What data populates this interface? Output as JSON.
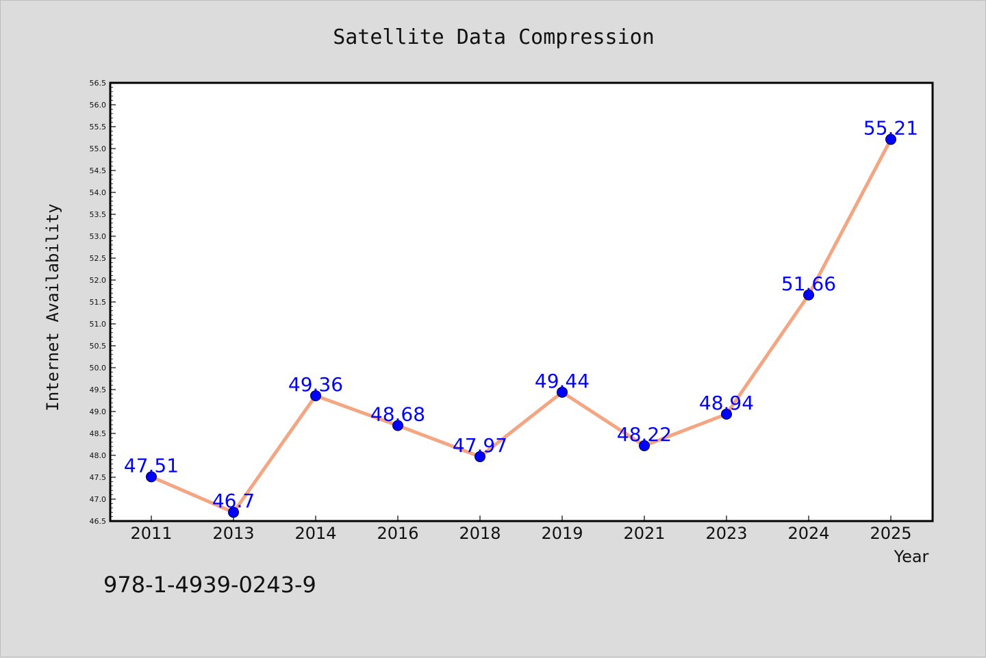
{
  "chart_data": {
    "type": "line",
    "title": "Satellite Data Compression",
    "xlabel": "Year",
    "ylabel": "Internet Availability",
    "categories": [
      "2011",
      "2013",
      "2014",
      "2016",
      "2018",
      "2019",
      "2021",
      "2023",
      "2024",
      "2025"
    ],
    "series": [
      {
        "values": [
          47.51,
          46.7,
          49.36,
          48.68,
          47.97,
          49.44,
          48.22,
          48.94,
          51.66,
          55.21
        ],
        "labels": [
          "47.51",
          "46.7",
          "49.36",
          "48.68",
          "47.97",
          "49.44",
          "48.22",
          "48.94",
          "51.66",
          "55.21"
        ]
      }
    ],
    "ylim": [
      46.5,
      56.5
    ],
    "yticks": [
      "46.5",
      "47.0",
      "47.5",
      "48.0",
      "48.5",
      "49.0",
      "49.5",
      "50.0",
      "50.5",
      "51.0",
      "51.5",
      "52.0",
      "52.5",
      "53.0",
      "53.5",
      "54.0",
      "54.5",
      "55.0",
      "55.5",
      "56.0",
      "56.5"
    ],
    "grid": false,
    "legend": "none",
    "colors": {
      "line": "#f4a582",
      "marker": "#0000ff",
      "label": "#0000ff",
      "background": "#dcdcdc",
      "plot_background": "#ffffff"
    }
  },
  "annotation": "978-1-4939-0243-9"
}
